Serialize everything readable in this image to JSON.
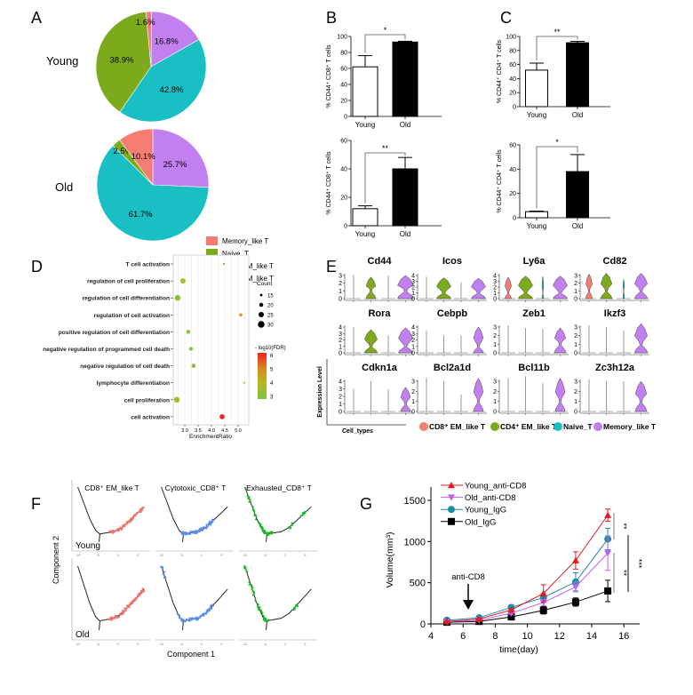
{
  "panel_labels": [
    "A",
    "B",
    "C",
    "D",
    "E",
    "F",
    "G"
  ],
  "colors": {
    "memory": "#f47c72",
    "naive": "#7caa1c",
    "cd8": "#19bfc2",
    "cd4": "#c27ff0",
    "red": "#e8191f",
    "purple": "#c060f0",
    "teal": "#1a8fa0",
    "black": "#000000",
    "traj_red": "#f0736a",
    "traj_blue": "#5d8fe8",
    "traj_green": "#1db82c"
  },
  "pie_legend": [
    {
      "label": "Memory_like T",
      "key": "memory"
    },
    {
      "label": "Naive_T",
      "key": "naive"
    },
    {
      "label": "CD8⁺ EM_like T",
      "key": "cd8"
    },
    {
      "label": "CD4⁺ EM_like T",
      "key": "cd4"
    }
  ],
  "chart_data": [
    {
      "type": "pie",
      "title": "Young",
      "categories": [
        "CD4⁺ EM_like T",
        "CD8⁺ EM_like T",
        "Naive_T",
        "Memory_like T"
      ],
      "keys": [
        "cd4",
        "cd8",
        "naive",
        "memory"
      ],
      "values": [
        16.8,
        42.8,
        38.9,
        1.6
      ],
      "labels": [
        "16.8%",
        "42.8%",
        "38.9%",
        "1.6%"
      ]
    },
    {
      "type": "pie",
      "title": "Old",
      "categories": [
        "CD4⁺ EM_like T",
        "CD8⁺ EM_like T",
        "Naive_T",
        "Memory_like T"
      ],
      "keys": [
        "cd4",
        "cd8",
        "naive",
        "memory"
      ],
      "values": [
        25.7,
        61.7,
        2.5,
        10.1
      ],
      "labels": [
        "25.7%",
        "61.7%",
        "2.5%",
        "10.1%"
      ]
    },
    {
      "type": "bar",
      "ylabel": "% CD44⁺ CD8⁺ T cells",
      "categories": [
        "Young",
        "Old"
      ],
      "values": [
        62,
        93
      ],
      "errors": [
        14,
        1
      ],
      "ylim": [
        0,
        100
      ],
      "yticks": [
        "0",
        "20",
        "40",
        "60",
        "80",
        "100"
      ],
      "significance": "*"
    },
    {
      "type": "bar",
      "ylabel": "% CD44⁺ CD8⁺ T cells",
      "categories": [
        "Young",
        "Old"
      ],
      "values": [
        12,
        40
      ],
      "errors": [
        2,
        8
      ],
      "ylim": [
        0,
        60
      ],
      "yticks": [
        "0",
        "20",
        "40",
        "60"
      ],
      "significance": "**"
    },
    {
      "type": "bar",
      "ylabel": "% CD44⁺ CD4⁺ T cells",
      "categories": [
        "Young",
        "Old"
      ],
      "values": [
        52,
        91
      ],
      "errors": [
        10,
        2
      ],
      "ylim": [
        0,
        100
      ],
      "yticks": [
        "0",
        "20",
        "40",
        "60",
        "80",
        "100"
      ],
      "significance": "**"
    },
    {
      "type": "bar",
      "ylabel": "% CD44⁺ CD4⁺ T cells",
      "categories": [
        "Young",
        "Old"
      ],
      "values": [
        5,
        38
      ],
      "errors": [
        0.5,
        14
      ],
      "ylim": [
        0,
        60
      ],
      "yticks": [
        "0",
        "20",
        "40",
        "60"
      ],
      "significance": "*"
    },
    {
      "type": "scatter",
      "subtype": "dotplot",
      "terms": [
        "T cell activation",
        "regulation of cell proliferation",
        "regulation of cell differentiation",
        "regulation of cell activation",
        "positive regulation of cell differentiation",
        "negative regulation of programmed cell death",
        "negative regulation of cell death",
        "lymphocyte differentiation",
        "cell proliferation",
        "cell activation"
      ],
      "enrichment_ratio": [
        4.47,
        2.93,
        2.73,
        5.1,
        3.13,
        3.23,
        3.33,
        5.23,
        2.7,
        4.4
      ],
      "count": [
        13,
        25,
        27,
        17,
        20,
        19,
        21,
        12,
        27,
        24
      ],
      "neg_log10_fdr": [
        3.2,
        3.8,
        3.3,
        4.8,
        3.1,
        3.1,
        3.3,
        3.5,
        3.7,
        6.2
      ],
      "xlabel": "EnrichmentRatio",
      "xlim": [
        2.57,
        5.4
      ],
      "xticks": [
        "3.0",
        "3.5",
        "4.0",
        "4.5",
        "5.0"
      ],
      "size_legend_title": "Count",
      "size_legend": [
        "15",
        "20",
        "25",
        "30"
      ],
      "color_legend_title": "- log10(FDR)",
      "color_legend": [
        "6",
        "5",
        "4",
        "3"
      ]
    },
    {
      "type": "violin",
      "ylabel": "Expression Level",
      "xlabel": "Cell_types",
      "cell_types": [
        "CD8⁺ EM_like T",
        "CD4⁺ EM_like T",
        "Naive_T",
        "Memory_like T"
      ],
      "cell_keys": [
        "memory",
        "naive",
        "cd8",
        "cd4"
      ],
      "legend_keys": [
        "memory",
        "naive",
        "cd8",
        "cd4"
      ],
      "genes": [
        {
          "name": "Cd44",
          "ymax": 3,
          "max": [
            3.1,
            2.8,
            3.0,
            3.0
          ],
          "density": [
            0,
            0.6,
            0,
            1
          ]
        },
        {
          "name": "Icos",
          "ymax": 4,
          "max": [
            3.8,
            3.6,
            2.8,
            3.5
          ],
          "density": [
            0,
            0.9,
            0,
            0.9
          ]
        },
        {
          "name": "Ly6a",
          "ymax": 4,
          "max": [
            3.7,
            3.9,
            3.8,
            3.9
          ],
          "density": [
            0.4,
            0.9,
            0.1,
            0.9
          ]
        },
        {
          "name": "Cd82",
          "ymax": 3,
          "max": [
            3.2,
            3.3,
            2.5,
            3.3
          ],
          "density": [
            0.4,
            0.7,
            0.1,
            0.8
          ]
        },
        {
          "name": "Rora",
          "ymax": 4,
          "max": [
            4.0,
            3.6,
            2.7,
            3.9
          ],
          "density": [
            0,
            0.8,
            0,
            0.9
          ]
        },
        {
          "name": "Cebpb",
          "ymax": 4,
          "max": [
            3.4,
            2.7,
            2.7,
            4.0
          ],
          "density": [
            0,
            0,
            0,
            0.6
          ]
        },
        {
          "name": "Zeb1",
          "ymax": 3,
          "max": [
            3.2,
            2.9,
            2.8,
            2.9
          ],
          "density": [
            0,
            0,
            0,
            0.7
          ]
        },
        {
          "name": "Ikzf3",
          "ymax": 3,
          "max": [
            3.2,
            3.0,
            2.6,
            3.4
          ],
          "density": [
            0,
            0,
            0,
            0.8
          ]
        },
        {
          "name": "Cdkn1a",
          "ymax": 4,
          "max": [
            3.0,
            4.0,
            2.9,
            3.2
          ],
          "density": [
            0,
            0,
            0,
            0.6
          ]
        },
        {
          "name": "Bcl2a1d",
          "ymax": 3,
          "max": [
            3.3,
            3.0,
            1.7,
            3.3
          ],
          "density": [
            0,
            0,
            0,
            0.6
          ]
        },
        {
          "name": "Bcl11b",
          "ymax": 3,
          "max": [
            3.3,
            3.5,
            2.8,
            3.3
          ],
          "density": [
            0,
            0,
            0,
            0.6
          ]
        },
        {
          "name": "Zc3h12a",
          "ymax": 3,
          "max": [
            3.2,
            3.0,
            3.0,
            3.0
          ],
          "density": [
            0,
            0,
            0,
            0.7
          ]
        }
      ]
    },
    {
      "type": "scatter",
      "subtype": "trajectory",
      "xlabel": "Component 1",
      "ylabel": "Component 2",
      "xticks": [
        "-10",
        "-5",
        "0",
        "5"
      ],
      "columns": [
        "CD8⁺ EM_like T",
        "Cytotoxic_CD8⁺ T",
        "Exhausted_CD8⁺ T"
      ],
      "column_colors": [
        "traj_red",
        "traj_blue",
        "traj_green"
      ],
      "rows": [
        "Young",
        "Old"
      ],
      "trajectory": [
        [
          -10,
          7
        ],
        [
          -8.5,
          4
        ],
        [
          -7,
          1
        ],
        [
          -5.5,
          -1.2
        ],
        [
          -4.5,
          -1.8
        ],
        [
          -3,
          -1.6
        ],
        [
          -1,
          -1.4
        ],
        [
          1,
          -0.6
        ],
        [
          3,
          0.8
        ],
        [
          5,
          2.2
        ],
        [
          6.5,
          3.3
        ]
      ],
      "highlight_ranges": [
        [
          [
            [
              -2,
              6.5
            ]
          ],
          [
            [
              -5,
              3
            ]
          ],
          [
            [
              -10,
              -3
            ],
            [
              1,
              2
            ],
            [
              4,
              5
            ]
          ]
        ],
        [
          [
            [
              -2,
              6.5
            ]
          ],
          [
            [
              -10,
              -9
            ],
            [
              -6,
              3
            ]
          ],
          [
            [
              -10,
              -4
            ],
            [
              2,
              3
            ]
          ]
        ]
      ]
    },
    {
      "type": "line",
      "xlabel": "time(day)",
      "ylabel": "Volume(mm³)",
      "xlim": [
        4,
        17
      ],
      "ylim": [
        0,
        1650
      ],
      "xticks": [
        "4",
        "6",
        "8",
        "10",
        "12",
        "14",
        "16"
      ],
      "yticks": [
        "0",
        "500",
        "1000",
        "1500"
      ],
      "x": [
        5,
        7,
        9,
        11,
        13,
        15
      ],
      "series": [
        {
          "name": "Young_anti-CD8",
          "color": "red",
          "marker": "triangle-up",
          "values": [
            30,
            60,
            170,
            370,
            770,
            1320
          ],
          "errors": [
            5,
            8,
            20,
            105,
            105,
            75
          ]
        },
        {
          "name": "Old_anti-CD8",
          "color": "purple",
          "marker": "triangle-down",
          "values": [
            25,
            45,
            130,
            260,
            450,
            860
          ],
          "errors": [
            5,
            8,
            20,
            40,
            60,
            210
          ]
        },
        {
          "name": "Young_IgG",
          "color": "teal",
          "marker": "circle",
          "values": [
            45,
            75,
            200,
            320,
            510,
            1030
          ],
          "errors": [
            8,
            10,
            30,
            50,
            110,
            130
          ]
        },
        {
          "name": "Old_IgG",
          "color": "black",
          "marker": "square",
          "values": [
            20,
            30,
            85,
            165,
            265,
            400
          ],
          "errors": [
            5,
            8,
            15,
            45,
            50,
            130
          ]
        }
      ],
      "annotation": "anti-CD8",
      "significance": [
        "**",
        "**",
        "***"
      ]
    }
  ]
}
